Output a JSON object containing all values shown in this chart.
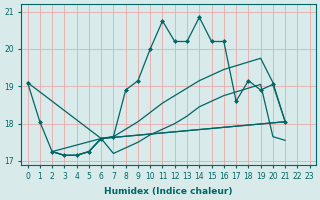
{
  "xlabel": "Humidex (Indice chaleur)",
  "bg_color": "#d8eaea",
  "grid_color": "#e8aaaa",
  "line_color": "#006666",
  "font_color": "#006666",
  "xlim": [
    -0.5,
    23.5
  ],
  "ylim": [
    16.9,
    21.2
  ],
  "yticks": [
    17,
    18,
    19,
    20,
    21
  ],
  "xticks": [
    0,
    1,
    2,
    3,
    4,
    5,
    6,
    7,
    8,
    9,
    10,
    11,
    12,
    13,
    14,
    15,
    16,
    17,
    18,
    19,
    20,
    21,
    22,
    23
  ],
  "jagged_x": [
    0,
    1,
    2,
    3,
    4,
    5,
    6,
    7,
    8,
    9,
    10,
    11,
    12,
    13,
    14,
    15,
    16,
    17,
    18,
    19,
    20,
    21
  ],
  "jagged_y": [
    19.1,
    18.05,
    17.25,
    17.15,
    17.15,
    17.25,
    17.6,
    17.65,
    18.9,
    19.15,
    20.0,
    20.75,
    20.2,
    20.2,
    20.85,
    20.2,
    20.2,
    18.6,
    19.15,
    18.9,
    19.05,
    18.05
  ],
  "line1_x": [
    0,
    6,
    21
  ],
  "line1_y": [
    19.1,
    17.6,
    18.05
  ],
  "line2_x": [
    2,
    6,
    21
  ],
  "line2_y": [
    17.25,
    17.6,
    18.05
  ],
  "smooth_upper_x": [
    2,
    3,
    4,
    5,
    6,
    7,
    8,
    9,
    10,
    11,
    12,
    13,
    14,
    15,
    16,
    17,
    18,
    19,
    20,
    21
  ],
  "smooth_upper_y": [
    17.25,
    17.15,
    17.15,
    17.25,
    17.6,
    17.65,
    17.85,
    18.05,
    18.3,
    18.55,
    18.75,
    18.95,
    19.15,
    19.3,
    19.45,
    19.55,
    19.65,
    19.75,
    19.1,
    18.05
  ],
  "smooth_lower_x": [
    2,
    3,
    4,
    5,
    6,
    7,
    8,
    9,
    10,
    11,
    12,
    13,
    14,
    15,
    16,
    17,
    18,
    19,
    20,
    21
  ],
  "smooth_lower_y": [
    17.25,
    17.15,
    17.15,
    17.25,
    17.6,
    17.2,
    17.35,
    17.5,
    17.7,
    17.85,
    18.0,
    18.2,
    18.45,
    18.6,
    18.75,
    18.85,
    18.95,
    19.05,
    17.65,
    17.55
  ]
}
